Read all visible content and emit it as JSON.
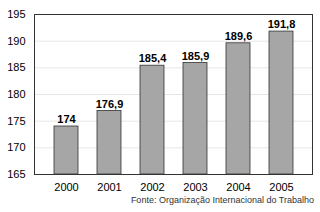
{
  "chart_data": {
    "type": "bar",
    "categories": [
      "2000",
      "2001",
      "2002",
      "2003",
      "2004",
      "2005"
    ],
    "values": [
      174,
      176.9,
      185.4,
      185.9,
      189.6,
      191.8
    ],
    "value_labels": [
      "174",
      "176,9",
      "185,4",
      "185,9",
      "189,6",
      "191,8"
    ],
    "data_labels": true,
    "color": "#a6a6a6",
    "ylim": [
      165,
      195
    ],
    "yticks": [
      165,
      170,
      175,
      180,
      185,
      190,
      195
    ],
    "grid": true,
    "caption": "Fonte: Organização Internacional do Trabalho"
  }
}
